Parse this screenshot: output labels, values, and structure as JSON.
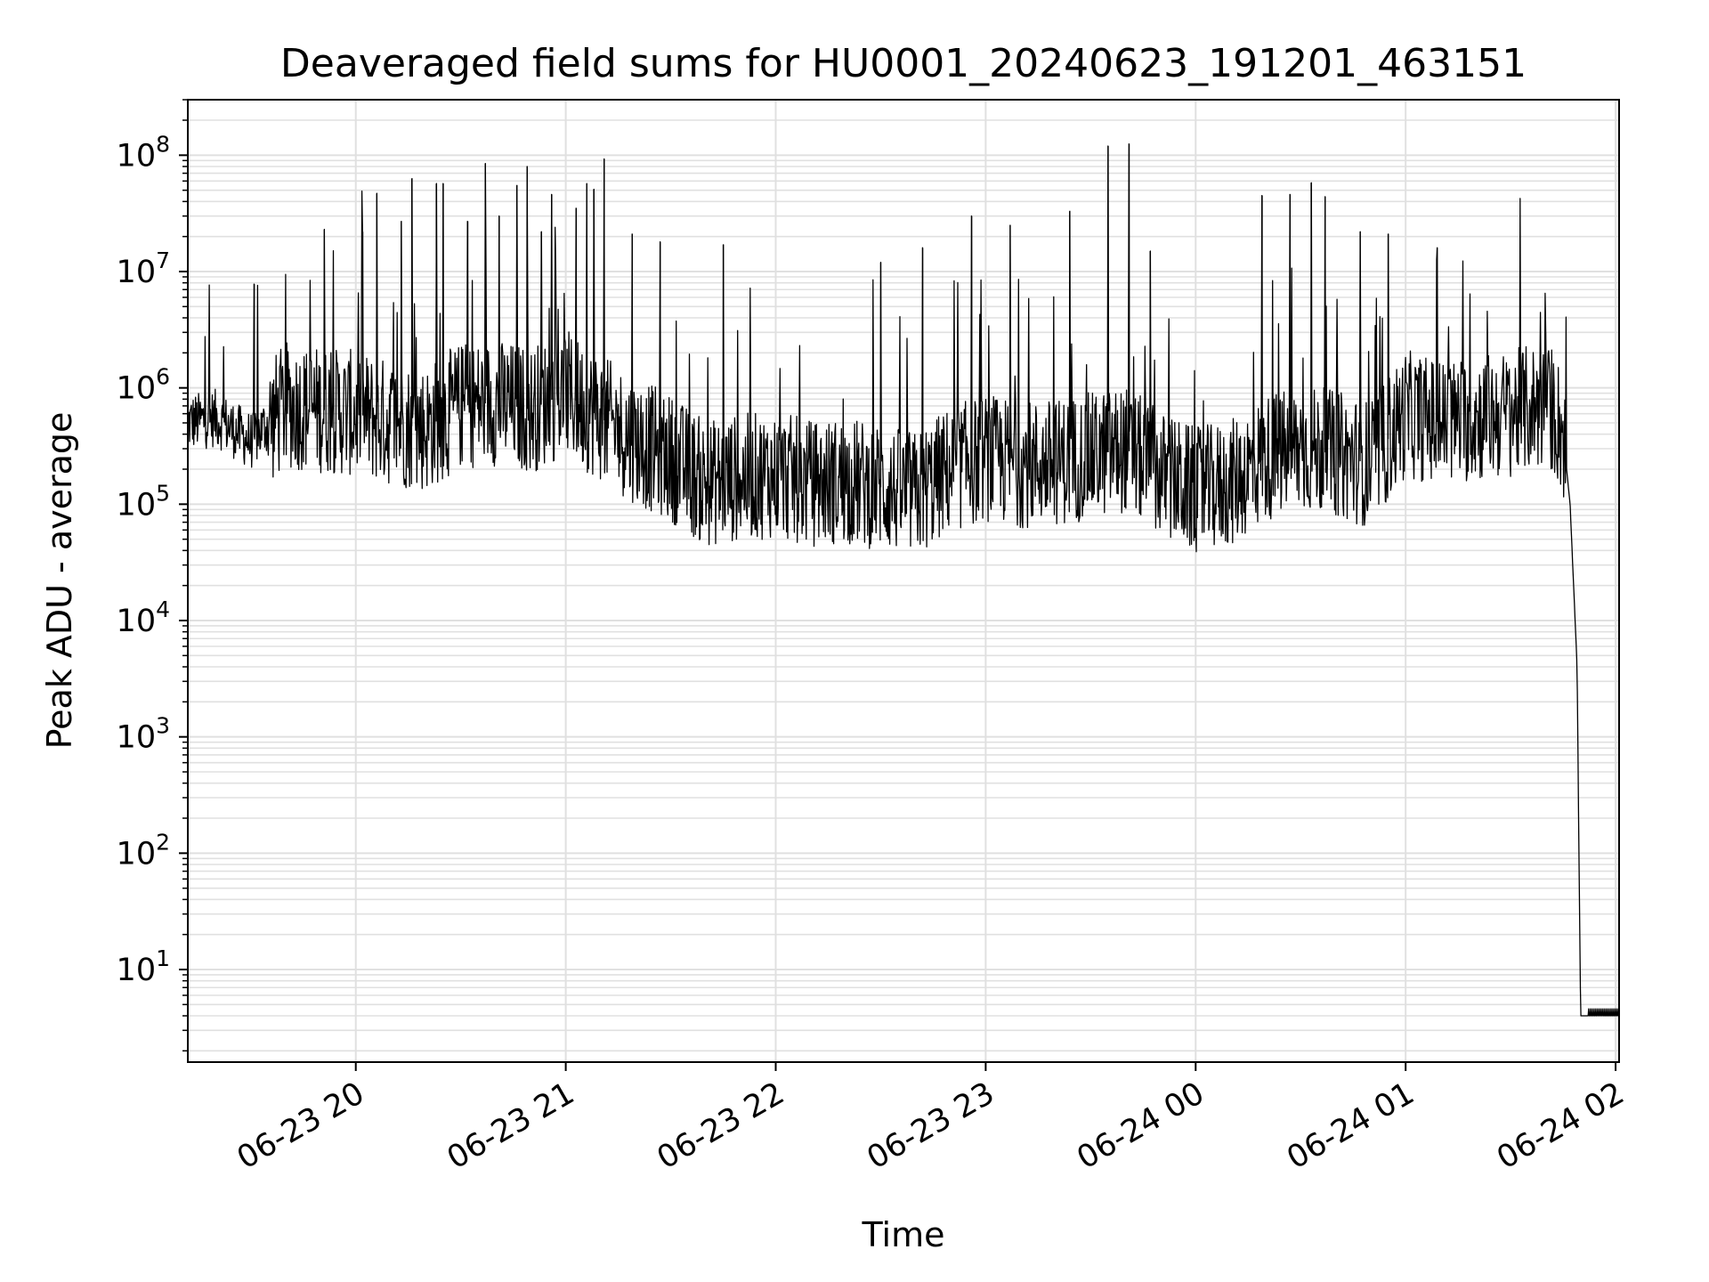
{
  "chart_data": {
    "type": "line",
    "title": "Deaveraged field sums for HU0001_20240623_191201_463151",
    "xlabel": "Time",
    "ylabel": "Peak ADU - average",
    "yscale": "log",
    "grid": true,
    "line_color": "#000000",
    "grid_color": "#e0e0e0",
    "xlim": [
      "2024-06-23 19:12",
      "2024-06-24 02:01"
    ],
    "ylim": [
      1.6,
      300000000
    ],
    "x_ticks": [
      {
        "value": "2024-06-23 20:00",
        "label": "06-23 20"
      },
      {
        "value": "2024-06-23 21:00",
        "label": "06-23 21"
      },
      {
        "value": "2024-06-23 22:00",
        "label": "06-23 22"
      },
      {
        "value": "2024-06-23 23:00",
        "label": "06-23 23"
      },
      {
        "value": "2024-06-24 00:00",
        "label": "06-24 00"
      },
      {
        "value": "2024-06-24 01:00",
        "label": "06-24 01"
      },
      {
        "value": "2024-06-24 02:00",
        "label": "06-24 02"
      }
    ],
    "y_ticks": [
      {
        "value": 10,
        "base": "10",
        "exp": "1"
      },
      {
        "value": 100,
        "base": "10",
        "exp": "2"
      },
      {
        "value": 1000,
        "base": "10",
        "exp": "3"
      },
      {
        "value": 10000,
        "base": "10",
        "exp": "4"
      },
      {
        "value": 100000,
        "base": "10",
        "exp": "5"
      },
      {
        "value": 1000000,
        "base": "10",
        "exp": "6"
      },
      {
        "value": 10000000,
        "base": "10",
        "exp": "7"
      },
      {
        "value": 100000000,
        "base": "10",
        "exp": "8"
      }
    ],
    "series": [
      {
        "x": [
          "2024-06-23 19:12",
          "2024-06-23 19:20",
          "2024-06-23 19:30",
          "2024-06-23 19:40",
          "2024-06-23 19:50",
          "2024-06-23 20:00",
          "2024-06-23 20:10",
          "2024-06-23 20:20",
          "2024-06-23 20:30",
          "2024-06-23 20:40",
          "2024-06-23 20:50",
          "2024-06-23 21:00",
          "2024-06-23 21:10",
          "2024-06-23 21:20",
          "2024-06-23 21:30",
          "2024-06-23 21:40",
          "2024-06-23 21:50",
          "2024-06-23 22:00",
          "2024-06-23 22:10",
          "2024-06-23 22:20",
          "2024-06-23 22:30",
          "2024-06-23 22:40",
          "2024-06-23 22:50",
          "2024-06-23 23:00",
          "2024-06-23 23:10",
          "2024-06-23 23:20",
          "2024-06-23 23:30",
          "2024-06-23 23:40",
          "2024-06-23 23:50",
          "2024-06-24 00:00",
          "2024-06-24 00:10",
          "2024-06-24 00:20",
          "2024-06-24 00:30",
          "2024-06-24 00:40",
          "2024-06-24 00:50",
          "2024-06-24 01:00",
          "2024-06-24 01:10",
          "2024-06-24 01:20",
          "2024-06-24 01:30",
          "2024-06-24 01:38",
          "2024-06-24 01:42",
          "2024-06-24 01:45",
          "2024-06-24 01:47",
          "2024-06-24 01:49",
          "2024-06-24 01:50",
          "2024-06-24 01:52",
          "2024-06-24 01:55",
          "2024-06-24 02:01"
        ],
        "y": [
          500000,
          550000,
          350000,
          700000,
          650000,
          600000,
          500000,
          450000,
          700000,
          750000,
          650000,
          900000,
          550000,
          350000,
          250000,
          150000,
          170000,
          180000,
          150000,
          160000,
          140000,
          120000,
          200000,
          250000,
          220000,
          230000,
          260000,
          300000,
          180000,
          130000,
          150000,
          250000,
          300000,
          270000,
          220000,
          600000,
          500000,
          550000,
          600000,
          700000,
          650000,
          400000,
          100000,
          4000,
          4,
          4,
          4,
          4
        ]
      }
    ],
    "spikes": [
      {
        "x": "2024-06-23 19:31",
        "y": 7800000
      },
      {
        "x": "2024-06-23 19:51",
        "y": 23000000
      },
      {
        "x": "2024-06-23 20:02",
        "y": 22000000
      },
      {
        "x": "2024-06-23 20:06",
        "y": 47000000
      },
      {
        "x": "2024-06-23 20:13",
        "y": 27000000
      },
      {
        "x": "2024-06-23 20:16",
        "y": 63000000
      },
      {
        "x": "2024-06-23 20:23",
        "y": 57000000
      },
      {
        "x": "2024-06-23 20:25",
        "y": 57000000
      },
      {
        "x": "2024-06-23 20:32",
        "y": 27000000
      },
      {
        "x": "2024-06-23 20:37",
        "y": 85000000
      },
      {
        "x": "2024-06-23 20:41",
        "y": 30000000
      },
      {
        "x": "2024-06-23 20:46",
        "y": 55000000
      },
      {
        "x": "2024-06-23 20:49",
        "y": 80000000
      },
      {
        "x": "2024-06-23 20:53",
        "y": 22000000
      },
      {
        "x": "2024-06-23 20:56",
        "y": 46000000
      },
      {
        "x": "2024-06-23 21:03",
        "y": 35000000
      },
      {
        "x": "2024-06-23 21:06",
        "y": 57000000
      },
      {
        "x": "2024-06-23 21:08",
        "y": 51000000
      },
      {
        "x": "2024-06-23 21:11",
        "y": 93000000
      },
      {
        "x": "2024-06-23 21:19",
        "y": 21000000
      },
      {
        "x": "2024-06-23 21:27",
        "y": 18000000
      },
      {
        "x": "2024-06-23 21:45",
        "y": 17000000
      },
      {
        "x": "2024-06-23 22:30",
        "y": 12000000
      },
      {
        "x": "2024-06-23 22:42",
        "y": 16000000
      },
      {
        "x": "2024-06-23 22:56",
        "y": 30000000
      },
      {
        "x": "2024-06-23 23:07",
        "y": 25000000
      },
      {
        "x": "2024-06-23 23:24",
        "y": 33000000
      },
      {
        "x": "2024-06-23 23:35",
        "y": 120000000
      },
      {
        "x": "2024-06-23 23:41",
        "y": 125000000
      },
      {
        "x": "2024-06-23 23:47",
        "y": 15000000
      },
      {
        "x": "2024-06-24 00:19",
        "y": 45000000
      },
      {
        "x": "2024-06-24 00:27",
        "y": 46000000
      },
      {
        "x": "2024-06-24 00:33",
        "y": 58000000
      },
      {
        "x": "2024-06-24 00:37",
        "y": 44000000
      },
      {
        "x": "2024-06-24 00:47",
        "y": 22000000
      },
      {
        "x": "2024-06-24 00:55",
        "y": 21000000
      },
      {
        "x": "2024-06-24 01:09",
        "y": 16000000
      },
      {
        "x": "2024-06-24 01:40",
        "y": 3000000
      }
    ]
  }
}
